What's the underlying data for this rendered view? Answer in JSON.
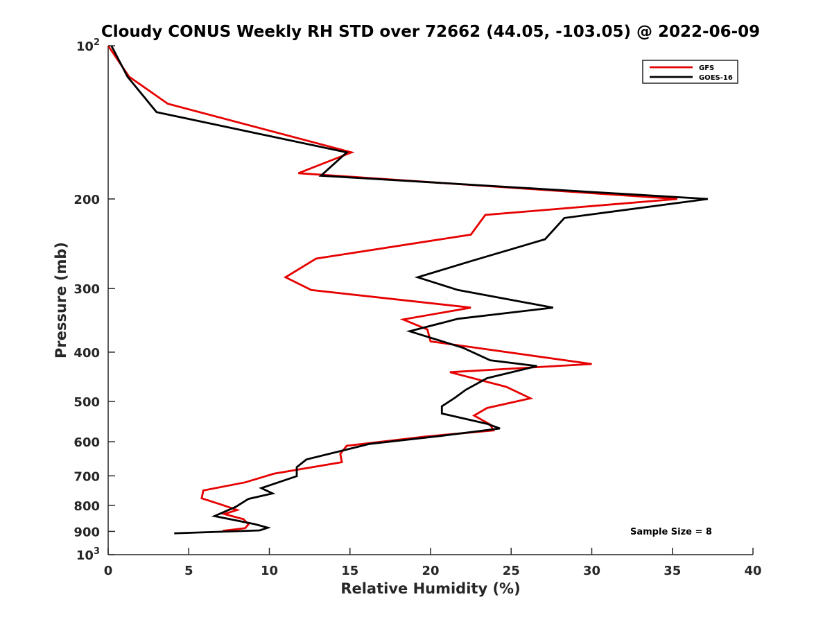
{
  "chart_data": {
    "type": "line",
    "title": "Cloudy CONUS Weekly RH STD over 72662 (44.05, -103.05) @ 2022-06-09",
    "xlabel": "Relative Humidity (%)",
    "ylabel": "Pressure (mb)",
    "xlim": [
      0,
      40
    ],
    "ylim": [
      100,
      1000
    ],
    "y_scale": "log",
    "y_reversed": true,
    "x_ticks": [
      0,
      5,
      10,
      15,
      20,
      25,
      30,
      35,
      40
    ],
    "y_ticks": [
      {
        "value": 100,
        "base": "10",
        "exp": "2"
      },
      {
        "value": 200,
        "label": "200"
      },
      {
        "value": 300,
        "label": "300"
      },
      {
        "value": 400,
        "label": "400"
      },
      {
        "value": 500,
        "label": "500"
      },
      {
        "value": 600,
        "label": "600"
      },
      {
        "value": 700,
        "label": "700"
      },
      {
        "value": 800,
        "label": "800"
      },
      {
        "value": 900,
        "label": "900"
      },
      {
        "value": 1000,
        "base": "10",
        "exp": "3"
      }
    ],
    "grid": false,
    "legend_position": "top-right",
    "series": [
      {
        "name": "GFS",
        "color": "#e60000",
        "points": [
          [
            0.0,
            100
          ],
          [
            1.3,
            115
          ],
          [
            3.7,
            130
          ],
          [
            15.1,
            162
          ],
          [
            11.8,
            178
          ],
          [
            35.3,
            200
          ],
          [
            23.4,
            215
          ],
          [
            22.5,
            235
          ],
          [
            12.9,
            262
          ],
          [
            11.0,
            285
          ],
          [
            12.6,
            302
          ],
          [
            22.5,
            327
          ],
          [
            18.3,
            345
          ],
          [
            19.8,
            361
          ],
          [
            20.0,
            381
          ],
          [
            30.0,
            422
          ],
          [
            21.2,
            438
          ],
          [
            24.7,
            468
          ],
          [
            26.2,
            493
          ],
          [
            23.5,
            515
          ],
          [
            22.7,
            533
          ],
          [
            23.7,
            555
          ],
          [
            23.9,
            570
          ],
          [
            19.7,
            586
          ],
          [
            14.8,
            611
          ],
          [
            14.4,
            634
          ],
          [
            14.5,
            658
          ],
          [
            10.3,
            693
          ],
          [
            8.5,
            721
          ],
          [
            5.9,
            748
          ],
          [
            5.8,
            775
          ],
          [
            7.0,
            797
          ],
          [
            8.0,
            817
          ],
          [
            7.2,
            832
          ],
          [
            8.4,
            852
          ],
          [
            8.7,
            872
          ],
          [
            8.5,
            887
          ],
          [
            7.1,
            898
          ]
        ]
      },
      {
        "name": "GOES-16",
        "color": "#000000",
        "points": [
          [
            0.2,
            100
          ],
          [
            1.2,
            115
          ],
          [
            3.0,
            135
          ],
          [
            14.8,
            162
          ],
          [
            13.2,
            180
          ],
          [
            37.2,
            200
          ],
          [
            28.3,
            218
          ],
          [
            27.1,
            240
          ],
          [
            22.5,
            265
          ],
          [
            19.2,
            285
          ],
          [
            21.7,
            302
          ],
          [
            27.6,
            327
          ],
          [
            21.7,
            344
          ],
          [
            18.7,
            364
          ],
          [
            22.0,
            392
          ],
          [
            23.7,
            415
          ],
          [
            26.6,
            426
          ],
          [
            23.5,
            450
          ],
          [
            22.2,
            474
          ],
          [
            21.5,
            492
          ],
          [
            20.7,
            511
          ],
          [
            20.7,
            528
          ],
          [
            23.5,
            553
          ],
          [
            24.3,
            565
          ],
          [
            20.5,
            585
          ],
          [
            16.2,
            606
          ],
          [
            12.3,
            650
          ],
          [
            11.7,
            673
          ],
          [
            11.7,
            701
          ],
          [
            9.5,
            740
          ],
          [
            10.2,
            758
          ],
          [
            8.7,
            777
          ],
          [
            7.9,
            806
          ],
          [
            6.6,
            840
          ],
          [
            9.1,
            871
          ],
          [
            9.9,
            885
          ],
          [
            9.4,
            896
          ],
          [
            4.1,
            908
          ]
        ]
      }
    ],
    "annotation": "Sample Size = 8"
  }
}
